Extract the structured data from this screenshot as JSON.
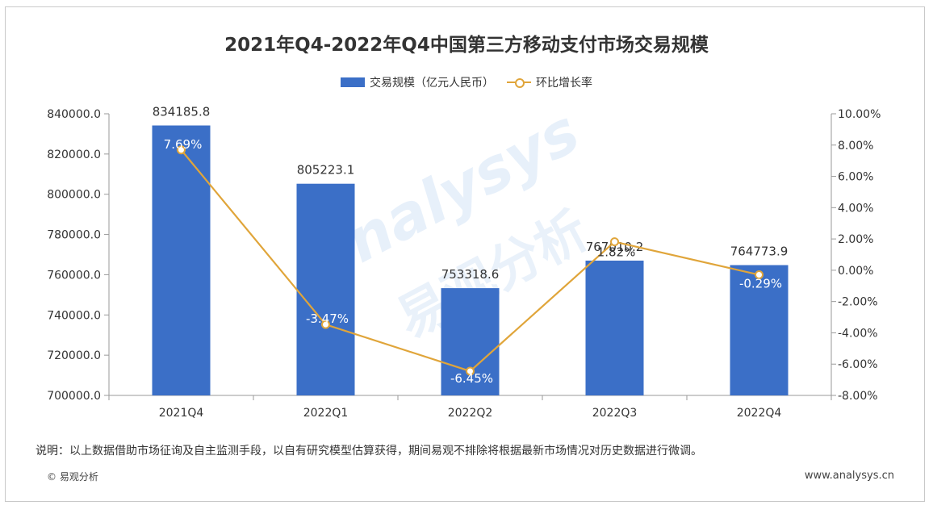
{
  "chart_data": {
    "type": "bar",
    "title": "2021年Q4-2022年Q4中国第三方移动支付市场交易规模",
    "categories": [
      "2021Q4",
      "2022Q1",
      "2022Q2",
      "2022Q3",
      "2022Q4"
    ],
    "series": [
      {
        "name": "交易规模（亿元人民币）",
        "type": "bar",
        "axis": "left",
        "values": [
          834185.8,
          805223.1,
          753318.6,
          767010.2,
          764773.9
        ],
        "labels": [
          "834185.8",
          "805223.1",
          "753318.6",
          "767010.2",
          "764773.9"
        ]
      },
      {
        "name": "环比增长率",
        "type": "line",
        "axis": "right",
        "values": [
          7.69,
          -3.47,
          -6.45,
          1.82,
          -0.29
        ],
        "labels": [
          "7.69%",
          "-3.47%",
          "-6.45%",
          "1.82%",
          "-0.29%"
        ]
      }
    ],
    "y_left": {
      "ylim": [
        700000,
        840000
      ],
      "ticks": [
        "700000.0",
        "720000.0",
        "740000.0",
        "760000.0",
        "780000.0",
        "800000.0",
        "820000.0",
        "840000.0"
      ]
    },
    "y_right": {
      "ylim": [
        -8,
        10
      ],
      "ticks": [
        "-8.00%",
        "-6.00%",
        "-4.00%",
        "-2.00%",
        "0.00%",
        "2.00%",
        "4.00%",
        "6.00%",
        "8.00%",
        "10.00%"
      ]
    },
    "colors": {
      "bar": "#3b6fc7",
      "line": "#e0a53a"
    },
    "legend_position": "top-center",
    "grid": false
  },
  "footer": {
    "note": "说明：以上数据借助市场征询及自主监测手段，以自有研究模型估算获得，期间易观不排除将根据最新市场情况对历史数据进行微调。",
    "copyright": "© 易观分析",
    "website": "www.analysys.cn"
  },
  "watermark": {
    "brand_en": "analysys",
    "brand_cn": "易观分析"
  }
}
